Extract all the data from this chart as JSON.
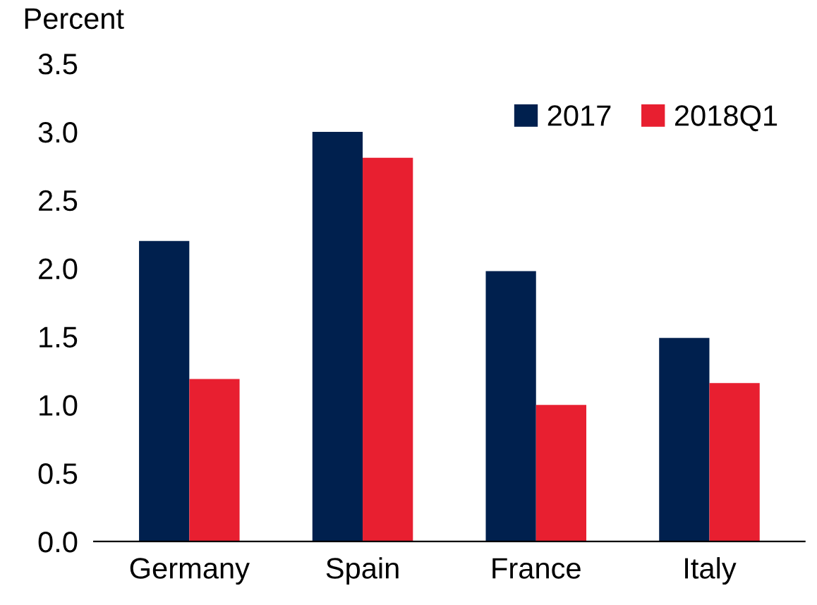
{
  "chart_data": {
    "type": "bar",
    "ylabel": "Percent",
    "categories": [
      "Germany",
      "Spain",
      "France",
      "Italy"
    ],
    "series": [
      {
        "name": "2017",
        "color": "#00204e",
        "values": [
          2.2,
          3.0,
          1.98,
          1.49
        ]
      },
      {
        "name": "2018Q1",
        "color": "#e81f30",
        "values": [
          1.19,
          2.81,
          1.0,
          1.16
        ]
      }
    ],
    "ylim": [
      0,
      3.5
    ],
    "yticks": [
      {
        "value": 0,
        "label": "0.0"
      },
      {
        "value": 0.5,
        "label": "0.5"
      },
      {
        "value": 1,
        "label": "1.0"
      },
      {
        "value": 1.5,
        "label": "1.5"
      },
      {
        "value": 2,
        "label": "2.0"
      },
      {
        "value": 2.5,
        "label": "2.5"
      },
      {
        "value": 3,
        "label": "3.0"
      },
      {
        "value": 3.5,
        "label": "3.5"
      }
    ],
    "grid": false,
    "legend": "top right"
  }
}
